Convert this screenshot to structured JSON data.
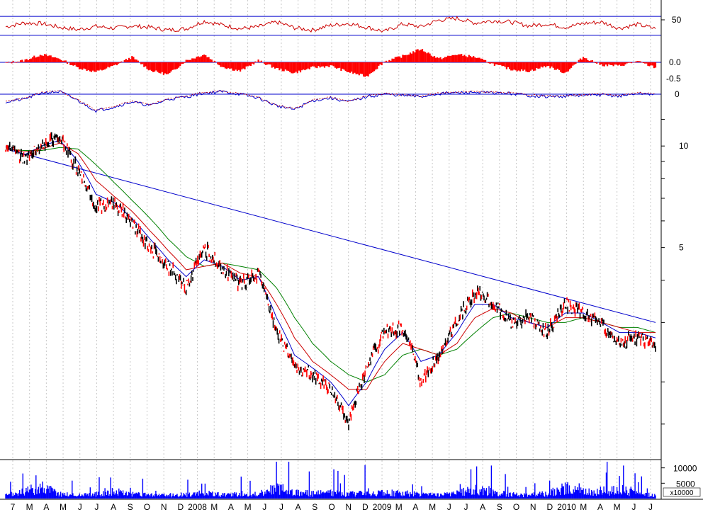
{
  "chart_data": [
    {
      "panel": "oscillator-rsi",
      "type": "line",
      "color": "#cc0000",
      "guide_color": "#0000cc",
      "guides": [
        70,
        30
      ],
      "ylim": [
        0,
        100
      ],
      "y_tick_labels": [
        "50"
      ],
      "x": [
        "2007-07",
        "2007-08",
        "2007-09",
        "2007-10",
        "2007-11",
        "2007-12",
        "2008-01",
        "2008-02",
        "2008-03",
        "2008-04",
        "2008-05",
        "2008-06",
        "2008-07",
        "2008-08",
        "2008-09",
        "2008-10",
        "2008-11",
        "2008-12",
        "2009-01",
        "2009-02",
        "2009-03",
        "2009-04",
        "2009-05",
        "2009-06",
        "2009-07",
        "2009-08",
        "2009-09",
        "2009-10",
        "2009-11",
        "2009-12",
        "2010-01",
        "2010-02",
        "2010-03",
        "2010-04",
        "2010-05",
        "2010-06",
        "2010-07"
      ],
      "values": [
        48,
        56,
        55,
        47,
        42,
        49,
        45,
        50,
        47,
        41,
        44,
        60,
        52,
        44,
        48,
        58,
        46,
        41,
        51,
        55,
        47,
        38,
        54,
        48,
        62,
        66,
        56,
        61,
        58,
        50,
        54,
        47,
        55,
        58,
        45,
        53,
        44
      ]
    },
    {
      "panel": "oscillator-histogram",
      "type": "bar",
      "color": "#ff0000",
      "zero_line_color": "#0000cc",
      "y_tick_labels": [
        "0.0",
        "-0.5"
      ],
      "x": [
        "2007-07",
        "2007-08",
        "2007-09",
        "2007-10",
        "2007-11",
        "2007-12",
        "2008-01",
        "2008-02",
        "2008-03",
        "2008-04",
        "2008-05",
        "2008-06",
        "2008-07",
        "2008-08",
        "2008-09",
        "2008-10",
        "2008-11",
        "2008-12",
        "2009-01",
        "2009-02",
        "2009-03",
        "2009-04",
        "2009-05",
        "2009-06",
        "2009-07",
        "2009-08",
        "2009-09",
        "2009-10",
        "2009-11",
        "2009-12",
        "2010-01",
        "2010-02",
        "2010-03",
        "2010-04",
        "2010-05",
        "2010-06",
        "2010-07"
      ],
      "values": [
        -0.05,
        0.1,
        0.45,
        0.2,
        -0.3,
        -0.55,
        -0.2,
        0.3,
        -0.45,
        -0.7,
        0.1,
        0.45,
        -0.25,
        -0.5,
        0.1,
        -0.35,
        -0.6,
        -0.3,
        -0.2,
        -0.55,
        -0.8,
        0.05,
        0.35,
        0.75,
        0.2,
        0.45,
        0.3,
        -0.1,
        -0.4,
        -0.5,
        -0.2,
        -0.6,
        0.3,
        -0.15,
        -0.2,
        0.05,
        -0.3
      ]
    },
    {
      "panel": "oscillator-line",
      "type": "line",
      "colors": [
        "#0000cc",
        "#cc0000"
      ],
      "zero_line_color": "#0000cc",
      "y_tick_labels": [
        "0"
      ],
      "x": [
        "2007-07",
        "2007-08",
        "2007-09",
        "2007-10",
        "2007-11",
        "2007-12",
        "2008-01",
        "2008-02",
        "2008-03",
        "2008-04",
        "2008-05",
        "2008-06",
        "2008-07",
        "2008-08",
        "2008-09",
        "2008-10",
        "2008-11",
        "2008-12",
        "2009-01",
        "2009-02",
        "2009-03",
        "2009-04",
        "2009-05",
        "2009-06",
        "2009-07",
        "2009-08",
        "2009-09",
        "2009-10",
        "2009-11",
        "2009-12",
        "2010-01",
        "2010-02",
        "2010-03",
        "2010-04",
        "2010-05",
        "2010-06",
        "2010-07"
      ],
      "values": [
        -0.6,
        -0.4,
        0.1,
        0.2,
        -0.5,
        -1.3,
        -1.0,
        -0.6,
        -0.9,
        -0.4,
        -0.2,
        0.1,
        0.2,
        0.0,
        -0.3,
        -0.9,
        -1.2,
        -0.5,
        -0.3,
        -0.6,
        -0.2,
        0.0,
        -0.1,
        -0.2,
        0.05,
        0.1,
        0.15,
        0.1,
        0.05,
        -0.1,
        -0.2,
        -0.15,
        -0.1,
        -0.05,
        -0.15,
        0.05,
        0.0
      ]
    },
    {
      "panel": "price",
      "type": "line",
      "scale": "log",
      "ylim": [
        1.2,
        12.5
      ],
      "y_tick_labels": [
        "10",
        "5"
      ],
      "trendline": {
        "color": "#0000cc",
        "from": {
          "x": "2007-07",
          "y": 9.8
        },
        "to": {
          "x": "2010-07",
          "y": 3.0
        }
      },
      "series": [
        {
          "color": "#000000",
          "x": [
            "2007-07",
            "2007-08",
            "2007-09",
            "2007-10",
            "2007-11",
            "2007-12",
            "2008-01",
            "2008-02",
            "2008-03",
            "2008-04",
            "2008-05",
            "2008-06",
            "2008-07",
            "2008-08",
            "2008-09",
            "2008-10",
            "2008-11",
            "2008-12",
            "2009-01",
            "2009-02",
            "2009-03",
            "2009-04",
            "2009-05",
            "2009-06",
            "2009-07",
            "2009-08",
            "2009-09",
            "2009-10",
            "2009-11",
            "2009-12",
            "2010-01",
            "2010-02",
            "2010-03",
            "2010-04",
            "2010-05",
            "2010-06",
            "2010-07"
          ],
          "values": [
            10.0,
            9.2,
            10.2,
            10.6,
            8.5,
            6.6,
            6.8,
            5.9,
            5.0,
            4.4,
            3.8,
            5.0,
            4.3,
            3.9,
            4.2,
            2.8,
            2.2,
            2.1,
            1.9,
            1.5,
            2.2,
            2.8,
            2.9,
            2.0,
            2.4,
            3.0,
            3.7,
            3.4,
            3.0,
            3.1,
            2.8,
            3.4,
            3.2,
            3.0,
            2.6,
            2.7,
            2.6
          ]
        },
        {
          "color": "#0000cc",
          "x": [
            "2007-07",
            "2007-08",
            "2007-09",
            "2007-10",
            "2007-11",
            "2007-12",
            "2008-01",
            "2008-02",
            "2008-03",
            "2008-04",
            "2008-05",
            "2008-06",
            "2008-07",
            "2008-08",
            "2008-09",
            "2008-10",
            "2008-11",
            "2008-12",
            "2009-01",
            "2009-02",
            "2009-03",
            "2009-04",
            "2009-05",
            "2009-06",
            "2009-07",
            "2009-08",
            "2009-09",
            "2009-10",
            "2009-11",
            "2009-12",
            "2010-01",
            "2010-02",
            "2010-03",
            "2010-04",
            "2010-05",
            "2010-06",
            "2010-07"
          ],
          "values": [
            10.0,
            9.4,
            10.0,
            10.4,
            9.0,
            7.2,
            6.8,
            6.1,
            5.3,
            4.6,
            4.1,
            4.6,
            4.4,
            4.0,
            4.1,
            3.1,
            2.4,
            2.2,
            2.0,
            1.7,
            2.0,
            2.5,
            2.8,
            2.3,
            2.4,
            2.8,
            3.4,
            3.4,
            3.1,
            3.0,
            2.9,
            3.2,
            3.2,
            3.0,
            2.8,
            2.8,
            2.7
          ]
        },
        {
          "color": "#cc0000",
          "x": [
            "2007-07",
            "2007-08",
            "2007-09",
            "2007-10",
            "2007-11",
            "2007-12",
            "2008-01",
            "2008-02",
            "2008-03",
            "2008-04",
            "2008-05",
            "2008-06",
            "2008-07",
            "2008-08",
            "2008-09",
            "2008-10",
            "2008-11",
            "2008-12",
            "2009-01",
            "2009-02",
            "2009-03",
            "2009-04",
            "2009-05",
            "2009-06",
            "2009-07",
            "2009-08",
            "2009-09",
            "2009-10",
            "2009-11",
            "2009-12",
            "2010-01",
            "2010-02",
            "2010-03",
            "2010-04",
            "2010-05",
            "2010-06",
            "2010-07"
          ],
          "values": [
            9.9,
            9.6,
            9.8,
            10.2,
            9.5,
            7.9,
            7.1,
            6.4,
            5.6,
            4.9,
            4.3,
            4.4,
            4.5,
            4.2,
            4.1,
            3.4,
            2.7,
            2.3,
            2.1,
            1.9,
            1.9,
            2.3,
            2.6,
            2.5,
            2.4,
            2.6,
            3.1,
            3.3,
            3.2,
            3.0,
            2.9,
            3.1,
            3.1,
            3.0,
            2.9,
            2.8,
            2.8
          ]
        },
        {
          "color": "#008000",
          "x": [
            "2007-07",
            "2007-08",
            "2007-09",
            "2007-10",
            "2007-11",
            "2007-12",
            "2008-01",
            "2008-02",
            "2008-03",
            "2008-04",
            "2008-05",
            "2008-06",
            "2008-07",
            "2008-08",
            "2008-09",
            "2008-10",
            "2008-11",
            "2008-12",
            "2009-01",
            "2009-02",
            "2009-03",
            "2009-04",
            "2009-05",
            "2009-06",
            "2009-07",
            "2009-08",
            "2009-09",
            "2009-10",
            "2009-11",
            "2009-12",
            "2010-01",
            "2010-02",
            "2010-03",
            "2010-04",
            "2010-05",
            "2010-06",
            "2010-07"
          ],
          "values": [
            9.8,
            9.7,
            9.7,
            9.9,
            9.8,
            8.8,
            7.8,
            6.9,
            6.1,
            5.3,
            4.7,
            4.4,
            4.5,
            4.4,
            4.3,
            3.8,
            3.1,
            2.6,
            2.3,
            2.1,
            2.0,
            2.1,
            2.4,
            2.5,
            2.4,
            2.5,
            2.8,
            3.1,
            3.2,
            3.1,
            3.0,
            3.0,
            3.1,
            3.0,
            2.9,
            2.9,
            2.8
          ]
        }
      ]
    },
    {
      "panel": "volume",
      "type": "bar",
      "color": "#0000ff",
      "y_tick_labels": [
        "10000",
        "5000"
      ],
      "unit_label": "x10000",
      "x": [
        "2007-07",
        "2007-08",
        "2007-09",
        "2007-10",
        "2007-11",
        "2007-12",
        "2008-01",
        "2008-02",
        "2008-03",
        "2008-04",
        "2008-05",
        "2008-06",
        "2008-07",
        "2008-08",
        "2008-09",
        "2008-10",
        "2008-11",
        "2008-12",
        "2009-01",
        "2009-02",
        "2009-03",
        "2009-04",
        "2009-05",
        "2009-06",
        "2009-07",
        "2009-08",
        "2009-09",
        "2009-10",
        "2009-11",
        "2009-12",
        "2010-01",
        "2010-02",
        "2010-03",
        "2010-04",
        "2010-05",
        "2010-06",
        "2010-07"
      ],
      "values": [
        2500,
        5500,
        9800,
        4000,
        3000,
        3500,
        6000,
        3500,
        3000,
        2800,
        3200,
        4500,
        3000,
        3500,
        3800,
        9000,
        5500,
        4000,
        5000,
        3500,
        5500,
        4800,
        4500,
        3500,
        3000,
        4500,
        7500,
        5000,
        3500,
        3000,
        4000,
        9000,
        6000,
        5000,
        7500,
        4000,
        2500
      ]
    }
  ],
  "x_axis_labels": [
    "7",
    "M",
    "A",
    "M",
    "J",
    "J",
    "A",
    "S",
    "O",
    "N",
    "D",
    "2008",
    "M",
    "A",
    "M",
    "J",
    "J",
    "A",
    "S",
    "O",
    "N",
    "D",
    "2009",
    "M",
    "A",
    "M",
    "J",
    "J",
    "A",
    "S",
    "O",
    "N",
    "D",
    "2010",
    "M",
    "A",
    "M",
    "J",
    "J"
  ]
}
